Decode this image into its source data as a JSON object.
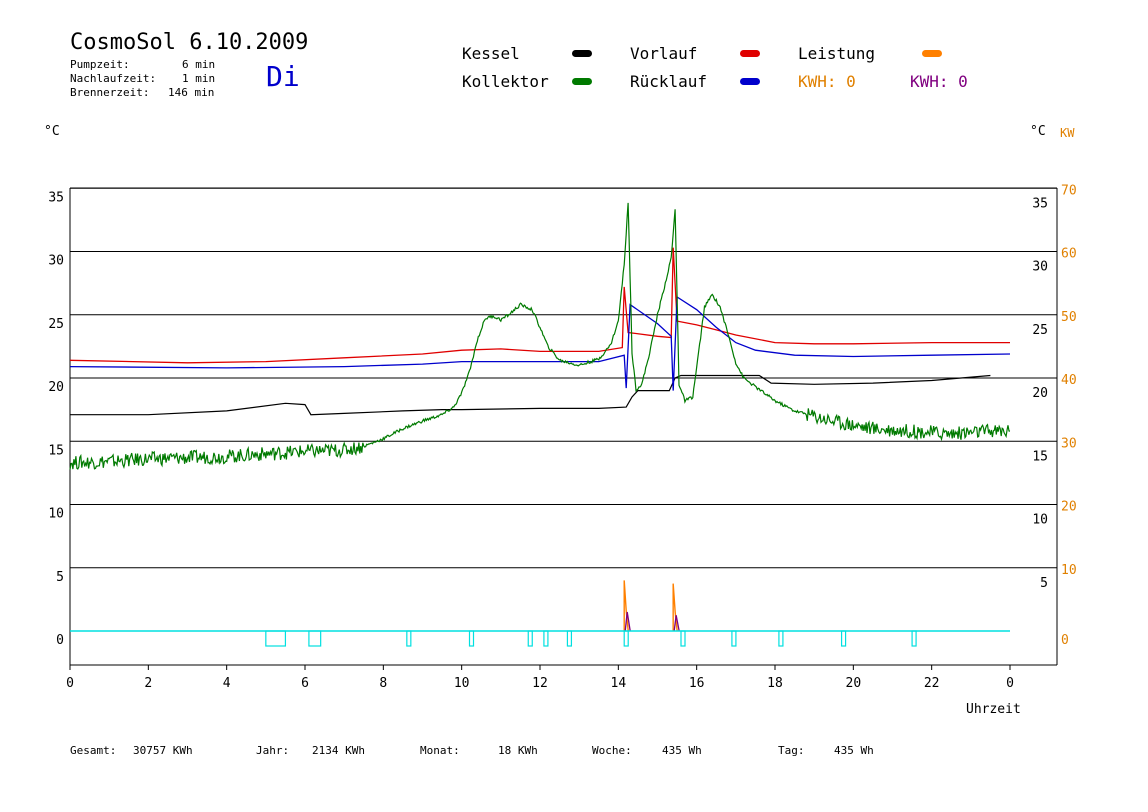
{
  "header": {
    "title": "CosmoSol 6.10.2009",
    "day": "Di",
    "info": [
      {
        "label": "Pumpzeit:",
        "value": "6 min"
      },
      {
        "label": "Nachlaufzeit:",
        "value": "1 min"
      },
      {
        "label": "Brennerzeit:",
        "value": "146 min"
      }
    ]
  },
  "legend": {
    "kessel": {
      "label": "Kessel",
      "color": "#000000"
    },
    "vorlauf": {
      "label": "Vorlauf",
      "color": "#e00000"
    },
    "leistung": {
      "label": "Leistung",
      "color": "#ff8000"
    },
    "kollektor": {
      "label": "Kollektor",
      "color": "#007a00"
    },
    "ruecklauf": {
      "label": "Rücklauf",
      "color": "#0000cc"
    },
    "kwh1": {
      "label": "KWH: 0",
      "color": "#e08000"
    },
    "kwh2": {
      "label": "KWH: 0",
      "color": "#800080"
    }
  },
  "units": {
    "left": "°C",
    "right_c": "°C",
    "right_kw": "KW"
  },
  "footer": [
    {
      "label": "Gesamt:",
      "value": "30757 KWh"
    },
    {
      "label": "Jahr:",
      "value": "2134 KWh"
    },
    {
      "label": "Monat:",
      "value": "18 KWh"
    },
    {
      "label": "Woche:",
      "value": "435 Wh"
    },
    {
      "label": "Tag:",
      "value": "435 Wh"
    }
  ],
  "chart_data": {
    "type": "line",
    "xlabel": "Uhrzeit",
    "x_ticks": [
      "0",
      "2",
      "4",
      "6",
      "8",
      "10",
      "12",
      "14",
      "16",
      "18",
      "20",
      "22",
      "0"
    ],
    "x_range": [
      0,
      24
    ],
    "y_left_ticks": [
      0,
      5,
      10,
      15,
      20,
      25,
      30,
      35
    ],
    "y_right_ticks": [
      5,
      10,
      15,
      20,
      25,
      30,
      35
    ],
    "y_right_kw_ticks": [
      0,
      10,
      20,
      30,
      40,
      50,
      60,
      70
    ],
    "ylim": [
      -2.5,
      35
    ],
    "grid": true,
    "series": [
      {
        "name": "Kessel",
        "color": "#000000",
        "points": [
          [
            0,
            17.1
          ],
          [
            2,
            17.1
          ],
          [
            4,
            17.4
          ],
          [
            5.5,
            18
          ],
          [
            6,
            17.9
          ],
          [
            6.15,
            17.1
          ],
          [
            7,
            17.2
          ],
          [
            8.5,
            17.4
          ],
          [
            9.5,
            17.5
          ],
          [
            10,
            17.5
          ],
          [
            12,
            17.6
          ],
          [
            13.5,
            17.6
          ],
          [
            14.2,
            17.7
          ],
          [
            14.35,
            18.5
          ],
          [
            14.5,
            19
          ],
          [
            15.3,
            19
          ],
          [
            15.45,
            20
          ],
          [
            15.6,
            20.2
          ],
          [
            17.6,
            20.2
          ],
          [
            17.9,
            19.6
          ],
          [
            19,
            19.5
          ],
          [
            20.5,
            19.6
          ],
          [
            22,
            19.8
          ],
          [
            23.5,
            20.2
          ]
        ]
      },
      {
        "name": "Vorlauf",
        "color": "#e00000",
        "points": [
          [
            0,
            21.4
          ],
          [
            3,
            21.2
          ],
          [
            5,
            21.3
          ],
          [
            7,
            21.6
          ],
          [
            9,
            21.9
          ],
          [
            10,
            22.2
          ],
          [
            11,
            22.3
          ],
          [
            12,
            22.1
          ],
          [
            13.5,
            22.1
          ],
          [
            14.1,
            22.4
          ],
          [
            14.15,
            27.2
          ],
          [
            14.25,
            23.6
          ],
          [
            15,
            23.3
          ],
          [
            15.35,
            23.2
          ],
          [
            15.4,
            30.3
          ],
          [
            15.5,
            24.5
          ],
          [
            16,
            24.2
          ],
          [
            16.5,
            23.8
          ],
          [
            17,
            23.4
          ],
          [
            18,
            22.8
          ],
          [
            19,
            22.7
          ],
          [
            20,
            22.7
          ],
          [
            22,
            22.8
          ],
          [
            24,
            22.8
          ]
        ]
      },
      {
        "name": "Rücklauf",
        "color": "#0000cc",
        "points": [
          [
            0,
            20.9
          ],
          [
            4,
            20.8
          ],
          [
            7,
            20.9
          ],
          [
            9,
            21.1
          ],
          [
            10,
            21.3
          ],
          [
            12,
            21.3
          ],
          [
            13.5,
            21.3
          ],
          [
            14.15,
            21.8
          ],
          [
            14.2,
            19.2
          ],
          [
            14.3,
            25.8
          ],
          [
            15,
            24.3
          ],
          [
            15.35,
            23.3
          ],
          [
            15.4,
            19
          ],
          [
            15.5,
            26.4
          ],
          [
            16,
            25.4
          ],
          [
            16.5,
            24
          ],
          [
            17,
            22.8
          ],
          [
            17.5,
            22.2
          ],
          [
            18.5,
            21.8
          ],
          [
            20,
            21.7
          ],
          [
            22,
            21.8
          ],
          [
            24,
            21.9
          ]
        ]
      },
      {
        "name": "Kollektor",
        "color": "#007a00",
        "points": [
          [
            0,
            13.3
          ],
          [
            1,
            13.4
          ],
          [
            2,
            13.6
          ],
          [
            3,
            13.7
          ],
          [
            4,
            13.8
          ],
          [
            5,
            14
          ],
          [
            6,
            14.2
          ],
          [
            7,
            14.3
          ],
          [
            7.5,
            14.6
          ],
          [
            8,
            15.2
          ],
          [
            8.5,
            16
          ],
          [
            9,
            16.6
          ],
          [
            9.5,
            17.1
          ],
          [
            9.8,
            17.7
          ],
          [
            10,
            18.8
          ],
          [
            10.2,
            20.5
          ],
          [
            10.4,
            23
          ],
          [
            10.6,
            24.7
          ],
          [
            10.8,
            24.9
          ],
          [
            11,
            24.6
          ],
          [
            11.2,
            25
          ],
          [
            11.5,
            25.8
          ],
          [
            11.8,
            25.4
          ],
          [
            12,
            24
          ],
          [
            12.2,
            22.5
          ],
          [
            12.5,
            21.4
          ],
          [
            13,
            21
          ],
          [
            13.5,
            21.5
          ],
          [
            13.8,
            22.6
          ],
          [
            14,
            24.5
          ],
          [
            14.15,
            29
          ],
          [
            14.25,
            33.9
          ],
          [
            14.35,
            22
          ],
          [
            14.45,
            19.1
          ],
          [
            14.6,
            19.5
          ],
          [
            14.8,
            22
          ],
          [
            15,
            25
          ],
          [
            15.2,
            27.5
          ],
          [
            15.35,
            29.5
          ],
          [
            15.45,
            33.3
          ],
          [
            15.55,
            19.5
          ],
          [
            15.7,
            18.2
          ],
          [
            15.9,
            18.5
          ],
          [
            16.05,
            22
          ],
          [
            16.2,
            25.6
          ],
          [
            16.4,
            26.6
          ],
          [
            16.6,
            25.6
          ],
          [
            16.8,
            23.5
          ],
          [
            17,
            21.2
          ],
          [
            17.2,
            20
          ],
          [
            17.5,
            19.3
          ],
          [
            18,
            18.2
          ],
          [
            18.5,
            17.4
          ],
          [
            19,
            17
          ],
          [
            19.5,
            16.6
          ],
          [
            20,
            16.3
          ],
          [
            20.5,
            16
          ],
          [
            21,
            15.9
          ],
          [
            21.5,
            15.8
          ],
          [
            22,
            15.7
          ],
          [
            22.5,
            15.6
          ],
          [
            23,
            15.7
          ],
          [
            23.5,
            15.8
          ],
          [
            24,
            15.8
          ]
        ]
      }
    ],
    "power_pulses": [
      {
        "x": 14.15,
        "leistung_kw": 8,
        "puls_kw": 3
      },
      {
        "x": 15.4,
        "leistung_kw": 7.5,
        "puls_kw": 2.5
      }
    ],
    "burner_markers": [
      [
        5,
        5.5
      ],
      [
        6.1,
        6.4
      ],
      [
        8.6,
        8.7
      ],
      [
        10.2,
        10.3
      ],
      [
        11.7,
        11.8
      ],
      [
        12.1,
        12.2
      ],
      [
        12.7,
        12.8
      ],
      [
        14.15,
        14.25
      ],
      [
        15.6,
        15.7
      ],
      [
        16.9,
        17.0
      ],
      [
        18.1,
        18.2
      ],
      [
        19.7,
        19.8
      ],
      [
        21.5,
        21.6
      ]
    ]
  }
}
